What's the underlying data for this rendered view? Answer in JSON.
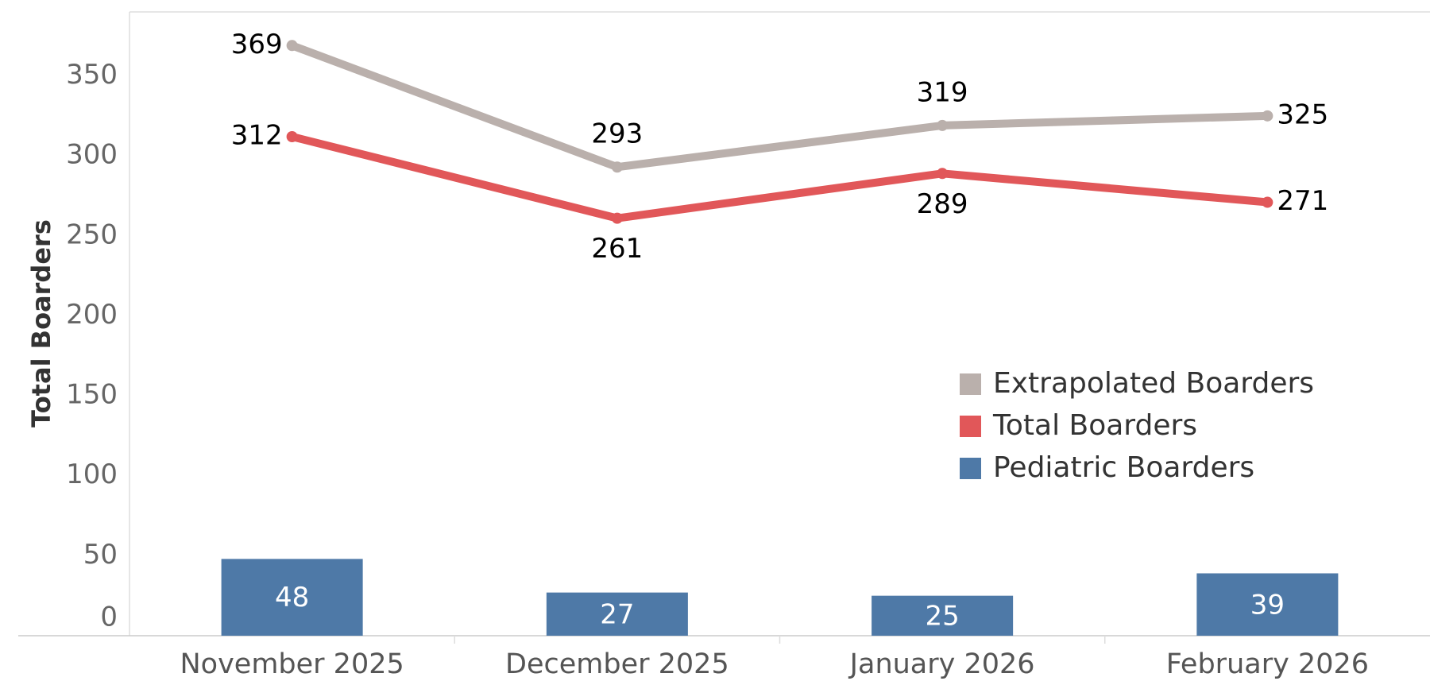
{
  "chart_data": {
    "type": "line",
    "y_label": "Total Boarders",
    "categories": [
      "November 2025",
      "December 2025",
      "January 2026",
      "February 2026"
    ],
    "series": [
      {
        "name": "Extrapolated Boarders",
        "color": "#bab0ac",
        "type": "line",
        "values": [
          369,
          293,
          319,
          325
        ]
      },
      {
        "name": "Total Boarders",
        "color": "#e15759",
        "type": "line",
        "values": [
          312,
          261,
          289,
          271
        ]
      },
      {
        "name": "Pediatric Boarders",
        "color": "#4e79a7",
        "type": "bar",
        "values": [
          48,
          27,
          25,
          39
        ]
      }
    ],
    "ylim": [
      0,
      390
    ],
    "yticks": [
      0,
      50,
      100,
      150,
      200,
      250,
      300,
      350
    ],
    "grid": false,
    "legend": "right"
  }
}
